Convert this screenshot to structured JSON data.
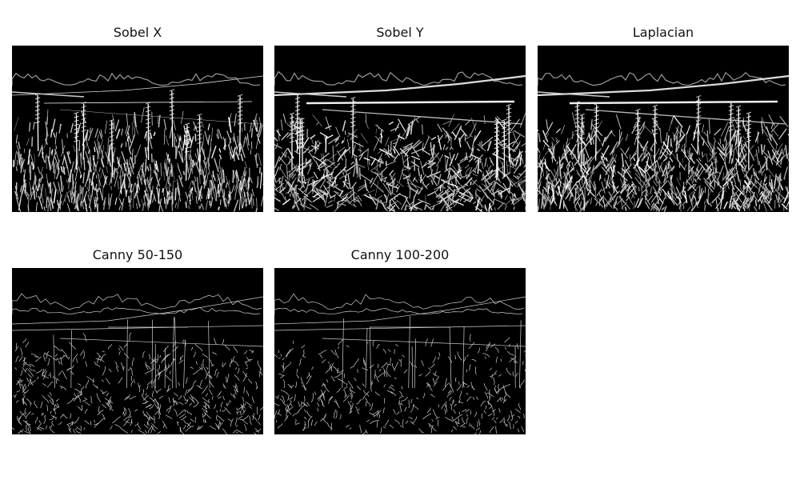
{
  "figure": {
    "panels": [
      {
        "title": "Sobel X",
        "filter": "sobel-x"
      },
      {
        "title": "Sobel Y",
        "filter": "sobel-y"
      },
      {
        "title": "Laplacian",
        "filter": "laplacian"
      },
      {
        "title": "Canny 50-150",
        "filter": "canny"
      },
      {
        "title": "Canny 100-200",
        "filter": "canny"
      }
    ]
  },
  "colors": {
    "background": "#ffffff",
    "image_background": "#000000",
    "edge": "#ffffff"
  }
}
